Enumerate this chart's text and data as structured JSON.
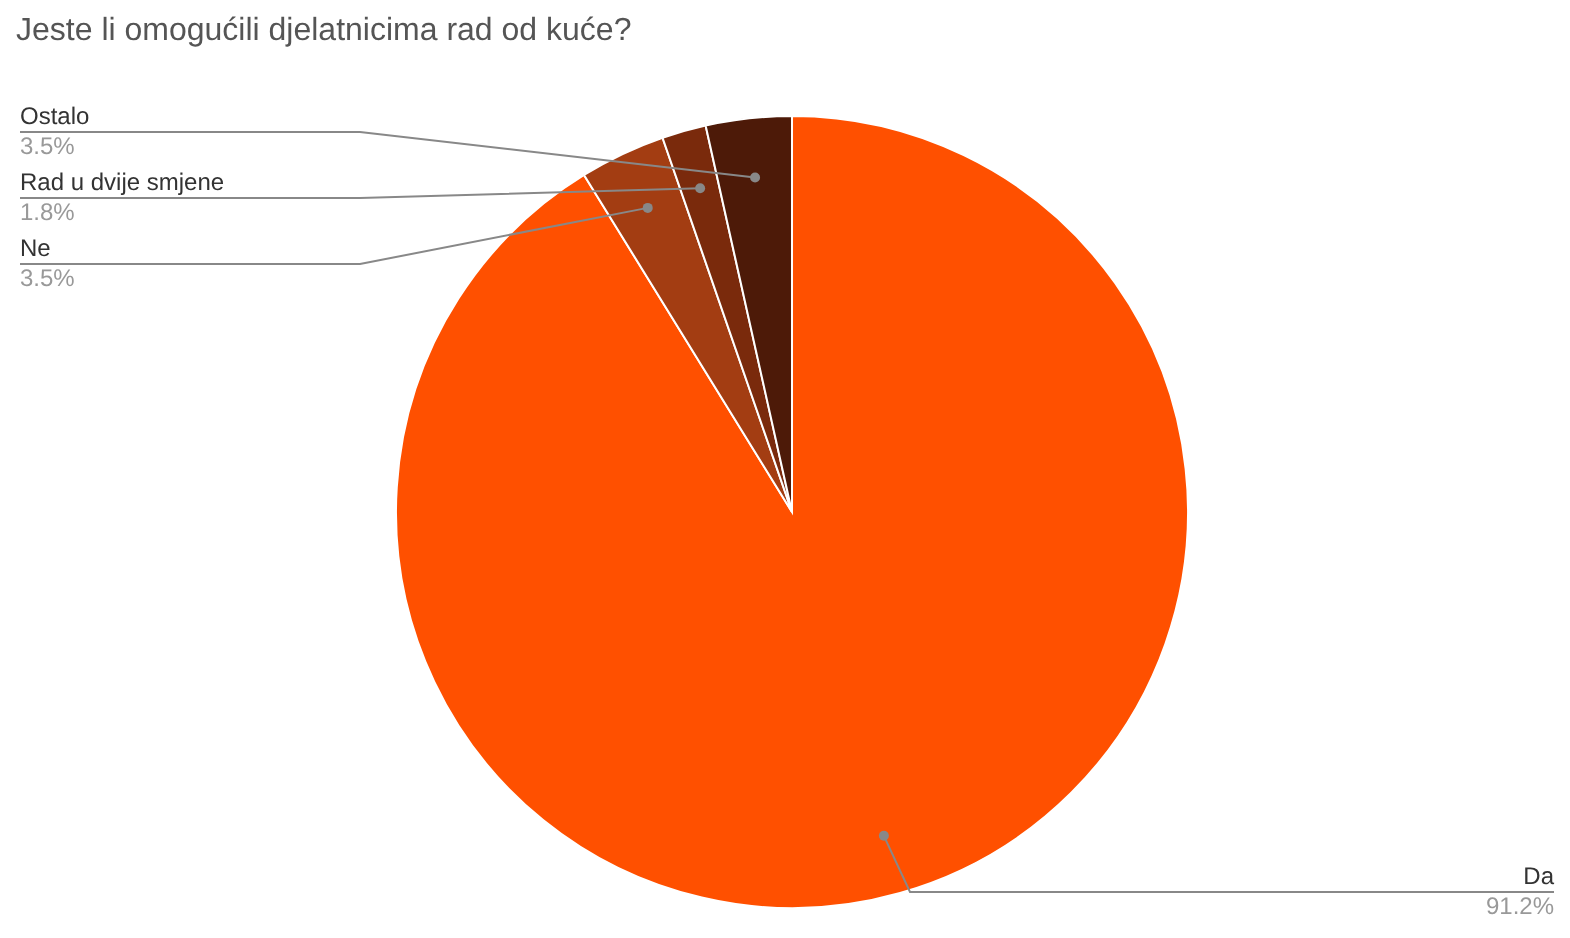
{
  "chart_data": {
    "type": "pie",
    "title": "Jeste li omogućili djelatnicima rad od kuće?",
    "categories": [
      "Da",
      "Ne",
      "Rad u dvije smjene",
      "Ostalo"
    ],
    "values": [
      91.2,
      3.5,
      1.8,
      3.5
    ],
    "colors": [
      "#ff5000",
      "#a33d12",
      "#7a2a0c",
      "#4d1a08"
    ],
    "value_labels": [
      "91.2%",
      "3.5%",
      "1.8%",
      "3.5%"
    ]
  }
}
